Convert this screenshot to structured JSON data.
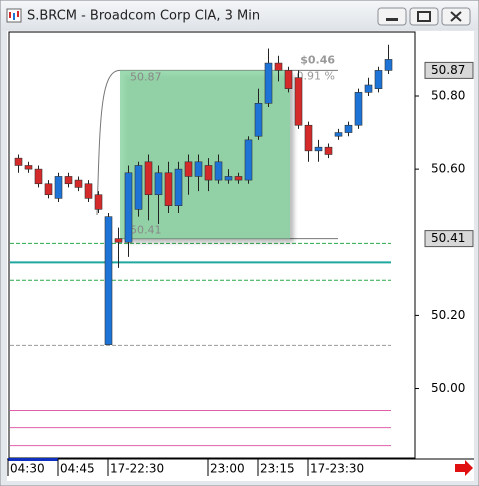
{
  "chart_data": {
    "type": "candlestick",
    "title": "S.BRCM - Broadcom Corp ClA, 3 Min",
    "categories": [
      null,
      null,
      null,
      null,
      null,
      null,
      null,
      null,
      null,
      null,
      null,
      null,
      null,
      null,
      null,
      null,
      null,
      null,
      null,
      null,
      null,
      null,
      null,
      null,
      null,
      null,
      null,
      null,
      null,
      null,
      null,
      null,
      null,
      null,
      null,
      null,
      null,
      null
    ],
    "open": [
      50.63,
      50.61,
      50.6,
      50.56,
      50.52,
      50.58,
      50.57,
      50.56,
      50.53,
      50.12,
      50.41,
      50.4,
      50.49,
      50.62,
      50.53,
      50.59,
      50.5,
      50.62,
      50.58,
      50.61,
      50.57,
      50.57,
      50.58,
      50.57,
      50.69,
      50.78,
      50.89,
      50.87,
      50.85,
      50.72,
      50.65,
      50.66,
      50.69,
      50.7,
      50.72,
      50.81,
      50.82,
      50.87
    ],
    "high": [
      50.64,
      50.62,
      50.61,
      50.57,
      50.59,
      50.59,
      50.58,
      50.57,
      50.54,
      50.48,
      50.44,
      50.61,
      50.62,
      50.64,
      50.61,
      50.62,
      50.62,
      50.64,
      50.64,
      50.63,
      50.64,
      50.6,
      50.59,
      50.69,
      50.82,
      50.93,
      50.91,
      50.88,
      50.87,
      50.73,
      50.68,
      50.67,
      50.71,
      50.73,
      50.82,
      50.85,
      50.88,
      50.94
    ],
    "low": [
      50.59,
      50.59,
      50.55,
      50.52,
      50.51,
      50.55,
      50.54,
      50.51,
      50.48,
      50.12,
      50.33,
      50.36,
      50.47,
      50.46,
      50.45,
      50.48,
      50.48,
      50.53,
      50.54,
      50.54,
      50.56,
      50.56,
      50.56,
      50.56,
      50.68,
      50.77,
      50.84,
      50.81,
      50.71,
      50.62,
      50.62,
      50.63,
      50.68,
      50.69,
      50.71,
      50.8,
      50.81,
      50.86
    ],
    "close": [
      50.61,
      50.6,
      50.56,
      50.53,
      50.58,
      50.56,
      50.55,
      50.52,
      50.49,
      50.47,
      50.4,
      50.59,
      50.61,
      50.53,
      50.59,
      50.5,
      50.6,
      50.58,
      50.62,
      50.57,
      50.62,
      50.58,
      50.57,
      50.68,
      50.78,
      50.89,
      50.87,
      50.82,
      50.72,
      50.65,
      50.66,
      50.64,
      50.7,
      50.72,
      50.81,
      50.83,
      50.87,
      50.9
    ],
    "up_color": "#1d74d6",
    "down_color": "#d42a2a",
    "ylim": [
      49.81,
      50.975
    ],
    "yticks": [
      {
        "value": 50.0,
        "label": "50.00"
      },
      {
        "value": 50.2,
        "label": "50.20"
      },
      {
        "value": 50.6,
        "label": "50.60"
      },
      {
        "value": 50.8,
        "label": "50.80"
      }
    ],
    "price_markers": [
      {
        "value": 50.87,
        "label": "50.87"
      },
      {
        "value": 50.41,
        "label": "50.41"
      }
    ],
    "xlim": [
      -1,
      39.7
    ],
    "xticks": [
      {
        "value": -1,
        "label": "04:30"
      },
      {
        "value": 4,
        "label": "04:45"
      },
      {
        "value": 9,
        "label": "17-22:30"
      },
      {
        "value": 19,
        "label": "23:00"
      },
      {
        "value": 24,
        "label": "23:15"
      },
      {
        "value": 29,
        "label": "17-23:30"
      }
    ],
    "levels": [
      {
        "value": 50.397,
        "color": "#2aa84a",
        "dashed": true
      },
      {
        "value": 50.296,
        "color": "#2aa84a",
        "dashed": true
      },
      {
        "value": 50.345,
        "color": "#20a8a0",
        "dashed": false
      },
      {
        "value": 50.118,
        "color": "#999999",
        "dashed": true
      },
      {
        "value": 49.94,
        "color": "#e060a8",
        "dashed": false
      },
      {
        "value": 49.893,
        "color": "#e060a8",
        "dashed": false
      },
      {
        "value": 49.844,
        "color": "#e060a8",
        "dashed": false
      }
    ],
    "measure": {
      "start": 10.2,
      "end": 27.2,
      "high": 50.87,
      "low": 50.41,
      "change": {
        "value": 0.46,
        "label": "$0.46"
      },
      "percent": {
        "value": 0.91,
        "label": "0.91 %"
      },
      "color": "#7fcf98"
    }
  }
}
